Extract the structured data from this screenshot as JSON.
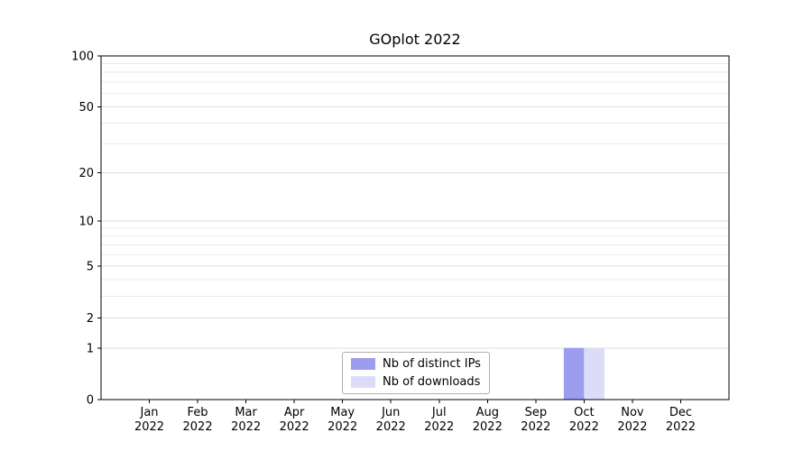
{
  "chart_data": {
    "type": "bar",
    "title": "GOplot 2022",
    "xlabel": "",
    "ylabel": "",
    "categories": [
      "Jan 2022",
      "Feb 2022",
      "Mar 2022",
      "Apr 2022",
      "May 2022",
      "Jun 2022",
      "Jul 2022",
      "Aug 2022",
      "Sep 2022",
      "Oct 2022",
      "Nov 2022",
      "Dec 2022"
    ],
    "series": [
      {
        "name": "Nb of distinct IPs",
        "color": "#9d9df0",
        "values": [
          0,
          0,
          0,
          0,
          0,
          0,
          0,
          0,
          0,
          1,
          0,
          0
        ]
      },
      {
        "name": "Nb of downloads",
        "color": "#dcdcf8",
        "values": [
          0,
          0,
          0,
          0,
          0,
          0,
          0,
          0,
          0,
          1,
          0,
          0
        ]
      }
    ],
    "yticks": [
      0,
      1,
      2,
      5,
      10,
      20,
      50,
      100
    ],
    "ylim": [
      0,
      100
    ],
    "yscale": "log1p",
    "grid": "horizontal-minor",
    "legend_position": "lower-center"
  }
}
